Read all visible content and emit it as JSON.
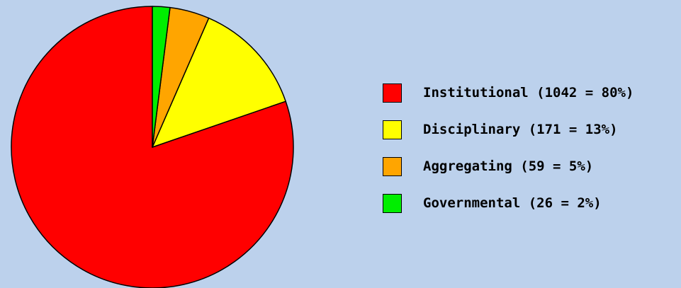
{
  "chart_data": {
    "type": "pie",
    "title": "",
    "start_angle_deg": 0,
    "direction": "counterclockwise",
    "legend_position": "right",
    "slices": [
      {
        "label": "Institutional (1042 = 80%)",
        "category": "Institutional",
        "value": 1042,
        "percent": 80,
        "color": "#ff0000"
      },
      {
        "label": "Disciplinary (171 = 13%)",
        "category": "Disciplinary",
        "value": 171,
        "percent": 13,
        "color": "#ffff00"
      },
      {
        "label": "Aggregating (59 = 5%)",
        "category": "Aggregating",
        "value": 59,
        "percent": 5,
        "color": "#ffa500"
      },
      {
        "label": "Governmental (26 = 2%)",
        "category": "Governmental",
        "value": 26,
        "percent": 2,
        "color": "#00ee00"
      }
    ]
  },
  "colors": {
    "background": "#bcd1ec",
    "outline": "#000000"
  }
}
